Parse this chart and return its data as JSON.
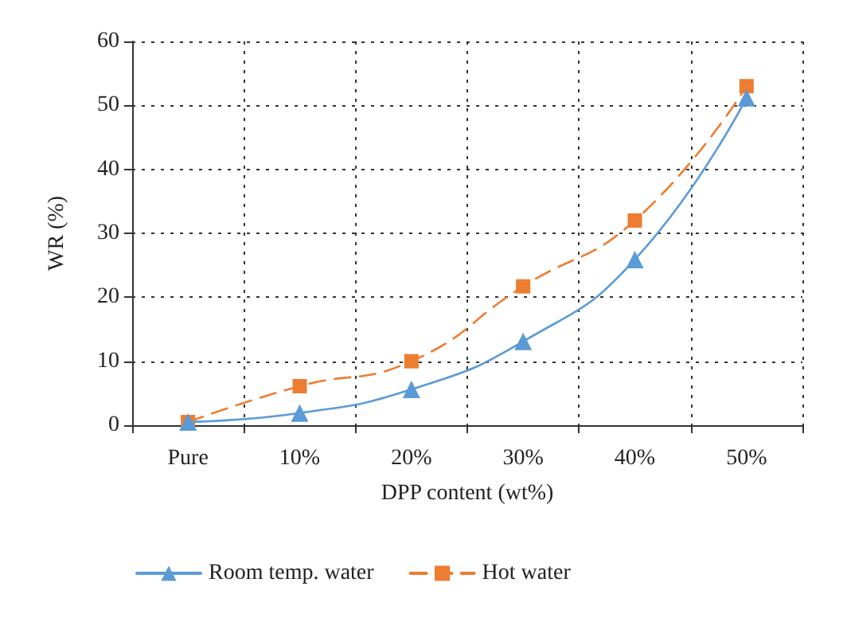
{
  "chart_data": {
    "type": "line",
    "xlabel": "DPP content (wt%)",
    "ylabel": "WR (%)",
    "categories": [
      "Pure",
      "10%",
      "20%",
      "30%",
      "40%",
      "50%"
    ],
    "ylim": [
      0,
      60
    ],
    "yticks": [
      0,
      10,
      20,
      30,
      40,
      50,
      60
    ],
    "grid": true,
    "legend": "bottom",
    "series": [
      {
        "name": "Room temp. water",
        "color": "#5b9bd5",
        "marker": "triangle",
        "line_style": "solid",
        "values": [
          0.5,
          1.9,
          5.6,
          13.1,
          25.9,
          51.2
        ]
      },
      {
        "name": "Hot water",
        "color": "#ed7d31",
        "marker": "square",
        "line_style": "dashed",
        "values": [
          0.5,
          6.1,
          10.0,
          21.7,
          32.0,
          53.0
        ]
      }
    ]
  }
}
